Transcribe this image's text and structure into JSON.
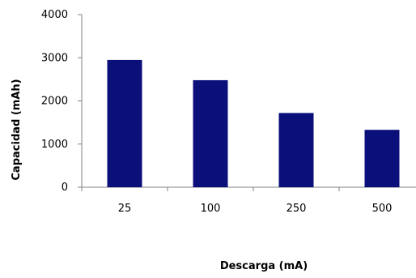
{
  "chart_data": {
    "type": "bar",
    "categories": [
      "25",
      "100",
      "250",
      "500"
    ],
    "series": [
      {
        "values": [
          2950,
          2480,
          1720,
          1330
        ],
        "color": "#0b0f7a"
      }
    ],
    "xlabel": "Descarga (mA)",
    "ylabel": "Capacidad (mAh)",
    "ylim": [
      0,
      4000
    ],
    "yticks": [
      "0",
      "1000",
      "2000",
      "3000",
      "4000"
    ],
    "grid": false,
    "legend": "none",
    "axis_color": "#808080"
  }
}
